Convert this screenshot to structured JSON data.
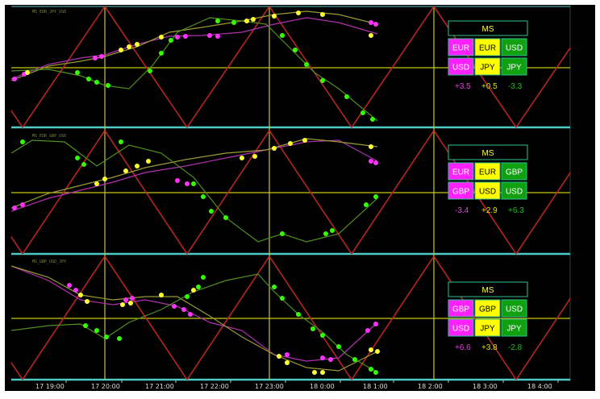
{
  "colors": {
    "background": "#000000",
    "red_line": "#c81414",
    "cyan_line": "#4fc9c4",
    "yellow_grid": "#c8c814",
    "green_line": "#4f8f1f",
    "magenta_line": "#b030b0",
    "olive_line": "#9a9a30",
    "magenta_dot": "#ff33ff",
    "yellow_dot": "#ffff33",
    "green_dot": "#33ff00",
    "panel_border": "#2fbf8f",
    "cell_magenta": "#ff20ff",
    "cell_yellow": "#ffff00",
    "cell_green": "#10a010",
    "value_magenta": "#e040e0",
    "value_yellow": "#e0e000",
    "value_green": "#20c020"
  },
  "x_axis": {
    "ticks": [
      "17 19:00",
      "17 20:00",
      "17 21:00",
      "17 22:00",
      "17 23:00",
      "18 0:00",
      "18 1:00",
      "18 2:00",
      "18 3:00",
      "18 4:00"
    ]
  },
  "chart_data": [
    {
      "type": "line",
      "pane": 1,
      "series_colors": [
        "magenta",
        "olive",
        "green"
      ],
      "header_text": "MS_EUR_JPY_USD",
      "ms_panel": {
        "title": "MS",
        "cells": [
          {
            "label": "EUR",
            "color": "magenta"
          },
          {
            "label": "EUR",
            "color": "yellow"
          },
          {
            "label": "USD",
            "color": "green"
          },
          {
            "label": "USD",
            "color": "magenta"
          },
          {
            "label": "JPY",
            "color": "yellow"
          },
          {
            "label": "JPY",
            "color": "green"
          }
        ],
        "values": [
          "+3.5",
          "+0.5",
          "-3.3"
        ]
      }
    },
    {
      "type": "line",
      "pane": 2,
      "series_colors": [
        "magenta",
        "olive",
        "green"
      ],
      "header_text": "MS_EUR_GBP_USD",
      "ms_panel": {
        "title": "MS",
        "cells": [
          {
            "label": "EUR",
            "color": "magenta"
          },
          {
            "label": "EUR",
            "color": "yellow"
          },
          {
            "label": "GBP",
            "color": "green"
          },
          {
            "label": "GBP",
            "color": "magenta"
          },
          {
            "label": "USD",
            "color": "yellow"
          },
          {
            "label": "USD",
            "color": "green"
          }
        ],
        "values": [
          "-3.4",
          "+2.9",
          "+6.3"
        ]
      }
    },
    {
      "type": "line",
      "pane": 3,
      "series_colors": [
        "magenta",
        "olive",
        "green"
      ],
      "header_text": "MS_GBP_USD_JPY",
      "ms_panel": {
        "title": "MS",
        "cells": [
          {
            "label": "GBP",
            "color": "magenta"
          },
          {
            "label": "GBP",
            "color": "yellow"
          },
          {
            "label": "USD",
            "color": "green"
          },
          {
            "label": "USD",
            "color": "magenta"
          },
          {
            "label": "JPY",
            "color": "yellow"
          },
          {
            "label": "JPY",
            "color": "green"
          }
        ],
        "values": [
          "+6.6",
          "+3.8",
          "-2.8"
        ]
      }
    }
  ]
}
